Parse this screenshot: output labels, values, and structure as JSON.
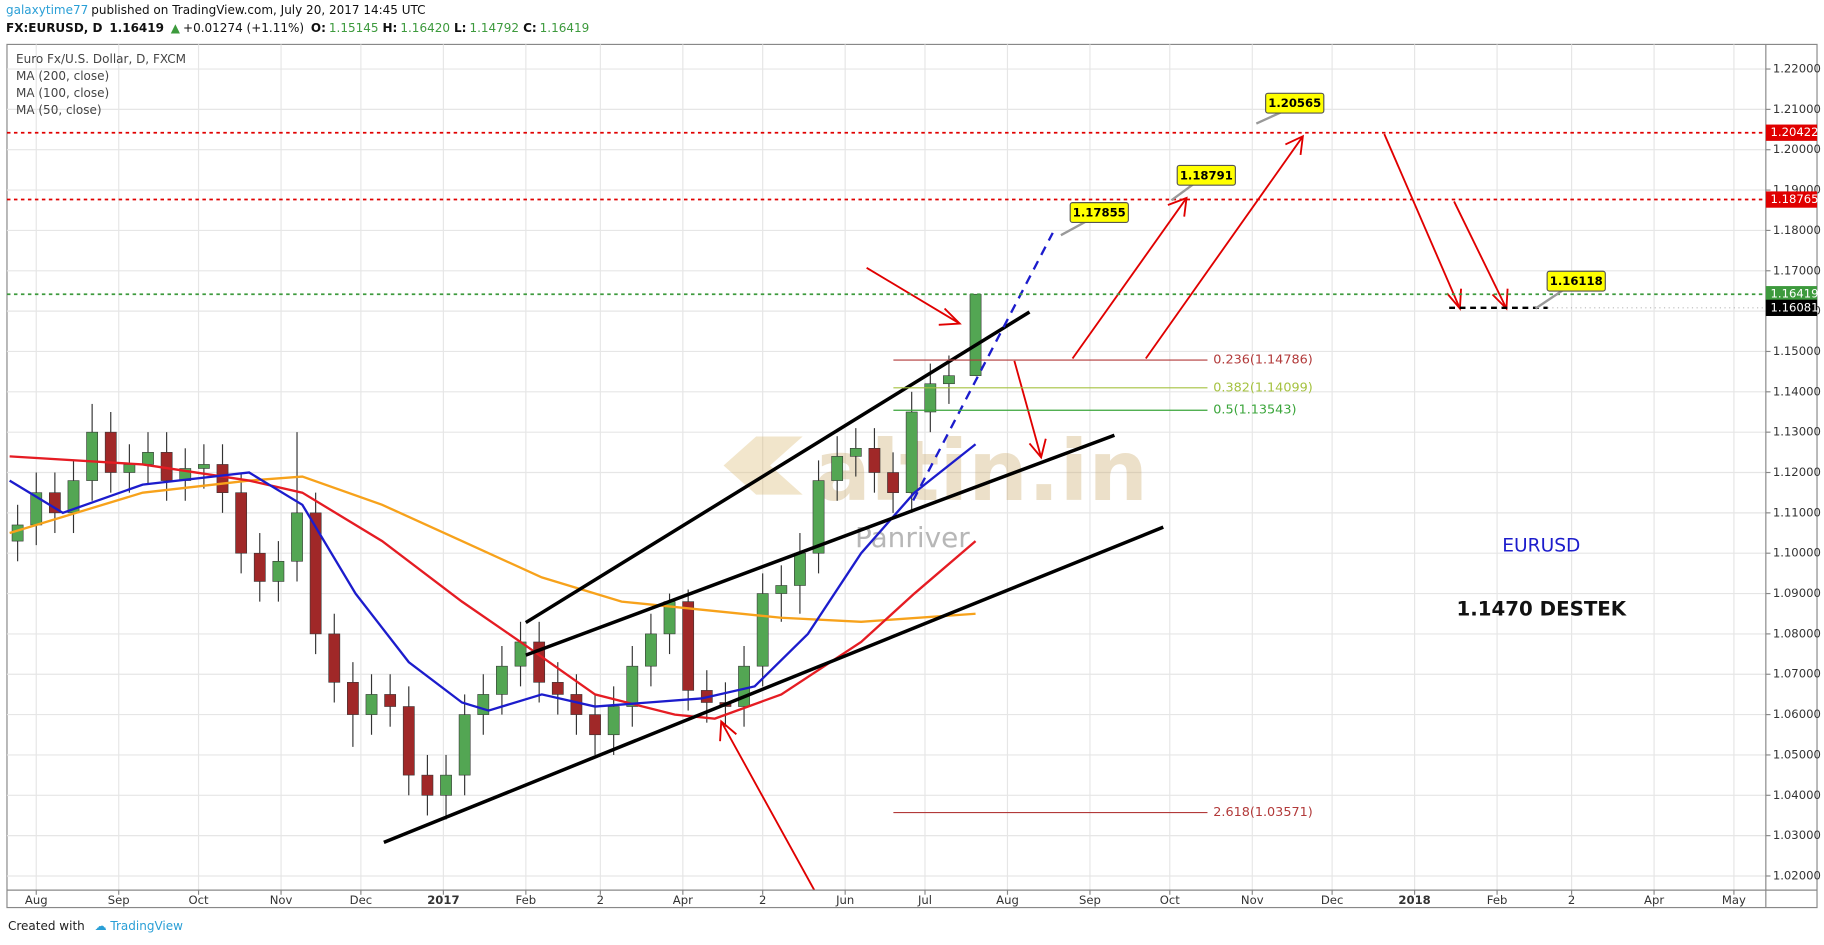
{
  "header": {
    "user": "galaxytime77",
    "published": "published on TradingView.com, July 20, 2017 14:45 UTC",
    "symbol": "FX:EURUSD, D",
    "last": "1.16419",
    "change": "+0.01274 (+1.11%)",
    "ohlc": [
      {
        "label": "O:",
        "value": "1.15145"
      },
      {
        "label": "H:",
        "value": "1.16420"
      },
      {
        "label": "L:",
        "value": "1.14792"
      },
      {
        "label": "C:",
        "value": "1.16419"
      }
    ]
  },
  "legend": [
    "Euro Fx/U.S. Dollar, D, FXCM",
    "MA (200, close)",
    "MA (100, close)",
    "MA (50, close)"
  ],
  "footer": {
    "created": "Created with",
    "brand": "TradingView"
  },
  "watermark": {
    "logo": "altin.in",
    "sub": "Panriver"
  },
  "chart_data": {
    "type": "candlestick",
    "grid": true,
    "up_color": "#53a653",
    "down_color": "#a02828",
    "xlim": [
      -11,
      650
    ],
    "ylim": [
      1.0165,
      1.2261
    ],
    "xticks": [
      {
        "value": 0,
        "label": "Aug"
      },
      {
        "value": 31,
        "label": "Sep"
      },
      {
        "value": 61,
        "label": "Oct"
      },
      {
        "value": 92,
        "label": "Nov"
      },
      {
        "value": 122,
        "label": "Dec"
      },
      {
        "value": 153,
        "label": "2017"
      },
      {
        "value": 184,
        "label": "Feb"
      },
      {
        "value": 212,
        "label": "2"
      },
      {
        "value": 243,
        "label": "Apr"
      },
      {
        "value": 273,
        "label": "2"
      },
      {
        "value": 304,
        "label": "Jun"
      },
      {
        "value": 334,
        "label": "Jul"
      },
      {
        "value": 365,
        "label": "Aug"
      },
      {
        "value": 396,
        "label": "Sep"
      },
      {
        "value": 426,
        "label": "Oct"
      },
      {
        "value": 457,
        "label": "Nov"
      },
      {
        "value": 487,
        "label": "Dec"
      },
      {
        "value": 518,
        "label": "2018"
      },
      {
        "value": 549,
        "label": "Feb"
      },
      {
        "value": 577,
        "label": "2"
      },
      {
        "value": 608,
        "label": "Apr"
      },
      {
        "value": 638,
        "label": "May"
      }
    ],
    "yticks": [
      {
        "value": 1.02,
        "label": "1.02000"
      },
      {
        "value": 1.03,
        "label": "1.03000"
      },
      {
        "value": 1.04,
        "label": "1.04000"
      },
      {
        "value": 1.05,
        "label": "1.05000"
      },
      {
        "value": 1.06,
        "label": "1.06000"
      },
      {
        "value": 1.07,
        "label": "1.07000"
      },
      {
        "value": 1.08,
        "label": "1.08000"
      },
      {
        "value": 1.09,
        "label": "1.09000"
      },
      {
        "value": 1.1,
        "label": "1.10000"
      },
      {
        "value": 1.11,
        "label": "1.11000"
      },
      {
        "value": 1.12,
        "label": "1.12000"
      },
      {
        "value": 1.13,
        "label": "1.13000"
      },
      {
        "value": 1.14,
        "label": "1.14000"
      },
      {
        "value": 1.15,
        "label": "1.15000"
      },
      {
        "value": 1.16,
        "label": "1.16000"
      },
      {
        "value": 1.17,
        "label": "1.17000"
      },
      {
        "value": 1.18,
        "label": "1.18000"
      },
      {
        "value": 1.19,
        "label": "1.19000"
      },
      {
        "value": 1.2,
        "label": "1.20000"
      },
      {
        "value": 1.21,
        "label": "1.21000"
      },
      {
        "value": 1.22,
        "label": "1.22000"
      }
    ],
    "x": [
      -7,
      0,
      7,
      14,
      21,
      28,
      35,
      42,
      49,
      56,
      63,
      70,
      77,
      84,
      91,
      98,
      105,
      112,
      119,
      126,
      133,
      140,
      147,
      154,
      161,
      168,
      175,
      182,
      189,
      196,
      203,
      210,
      217,
      224,
      231,
      238,
      245,
      252,
      259,
      266,
      273,
      280,
      287,
      294,
      301,
      308,
      315,
      322,
      329,
      336,
      343,
      353
    ],
    "open": [
      1.103,
      1.107,
      1.115,
      1.11,
      1.118,
      1.13,
      1.12,
      1.122,
      1.125,
      1.118,
      1.121,
      1.122,
      1.115,
      1.1,
      1.093,
      1.098,
      1.11,
      1.08,
      1.068,
      1.06,
      1.065,
      1.062,
      1.045,
      1.04,
      1.045,
      1.06,
      1.065,
      1.072,
      1.078,
      1.068,
      1.065,
      1.06,
      1.055,
      1.062,
      1.072,
      1.08,
      1.088,
      1.066,
      1.063,
      1.062,
      1.072,
      1.09,
      1.092,
      1.1,
      1.118,
      1.124,
      1.126,
      1.12,
      1.115,
      1.135,
      1.142,
      1.144
    ],
    "high": [
      1.112,
      1.12,
      1.12,
      1.123,
      1.137,
      1.135,
      1.127,
      1.13,
      1.13,
      1.126,
      1.127,
      1.127,
      1.12,
      1.105,
      1.103,
      1.13,
      1.115,
      1.085,
      1.073,
      1.07,
      1.07,
      1.067,
      1.05,
      1.05,
      1.065,
      1.07,
      1.077,
      1.083,
      1.083,
      1.073,
      1.07,
      1.065,
      1.067,
      1.077,
      1.085,
      1.09,
      1.091,
      1.071,
      1.068,
      1.077,
      1.095,
      1.097,
      1.105,
      1.123,
      1.129,
      1.131,
      1.131,
      1.125,
      1.14,
      1.147,
      1.149,
      1.1642
    ],
    "low": [
      1.098,
      1.102,
      1.105,
      1.105,
      1.113,
      1.115,
      1.115,
      1.117,
      1.113,
      1.113,
      1.116,
      1.11,
      1.095,
      1.088,
      1.088,
      1.093,
      1.075,
      1.063,
      1.052,
      1.055,
      1.057,
      1.04,
      1.035,
      1.034,
      1.04,
      1.055,
      1.06,
      1.067,
      1.063,
      1.06,
      1.055,
      1.05,
      1.05,
      1.057,
      1.067,
      1.075,
      1.061,
      1.058,
      1.057,
      1.057,
      1.067,
      1.083,
      1.085,
      1.095,
      1.113,
      1.119,
      1.115,
      1.11,
      1.11,
      1.13,
      1.137,
      1.1439
    ],
    "close": [
      1.107,
      1.115,
      1.11,
      1.118,
      1.13,
      1.12,
      1.122,
      1.125,
      1.118,
      1.121,
      1.122,
      1.115,
      1.1,
      1.093,
      1.098,
      1.11,
      1.08,
      1.068,
      1.06,
      1.065,
      1.062,
      1.045,
      1.04,
      1.045,
      1.06,
      1.065,
      1.072,
      1.078,
      1.068,
      1.065,
      1.06,
      1.055,
      1.062,
      1.072,
      1.08,
      1.088,
      1.066,
      1.063,
      1.062,
      1.072,
      1.09,
      1.092,
      1.1,
      1.118,
      1.124,
      1.126,
      1.12,
      1.115,
      1.135,
      1.142,
      1.144,
      1.16419
    ],
    "series": [
      {
        "name": "MA (200, close)",
        "color": "#f7a21b",
        "x": [
          -10,
          40,
          80,
          100,
          130,
          160,
          190,
          220,
          250,
          280,
          310,
          353
        ],
        "values": [
          1.105,
          1.115,
          1.118,
          1.119,
          1.112,
          1.103,
          1.094,
          1.088,
          1.086,
          1.084,
          1.083,
          1.085
        ]
      },
      {
        "name": "MA (100, close)",
        "color": "#e51c23",
        "x": [
          -10,
          40,
          80,
          100,
          130,
          160,
          182,
          210,
          240,
          255,
          280,
          310,
          330,
          353
        ],
        "values": [
          1.124,
          1.122,
          1.118,
          1.115,
          1.103,
          1.088,
          1.078,
          1.065,
          1.06,
          1.059,
          1.065,
          1.078,
          1.09,
          1.103
        ]
      },
      {
        "name": "MA (50, close)",
        "color": "#1c1ccc",
        "x": [
          -10,
          10,
          40,
          80,
          100,
          120,
          140,
          160,
          170,
          190,
          210,
          230,
          250,
          270,
          290,
          310,
          330,
          353
        ],
        "values": [
          1.118,
          1.11,
          1.117,
          1.12,
          1.112,
          1.09,
          1.073,
          1.063,
          1.061,
          1.065,
          1.062,
          1.063,
          1.064,
          1.067,
          1.08,
          1.1,
          1.115,
          1.127
        ]
      }
    ],
    "levels": [
      {
        "value": 1.20422,
        "color": "#e00000"
      },
      {
        "value": 1.18765,
        "color": "#e00000"
      },
      {
        "value": 1.16419,
        "color": "#3d9a3d"
      },
      {
        "value": 1.16081,
        "color": "#000000",
        "x": [
          531,
          568
        ]
      }
    ],
    "fib_levels": [
      {
        "value": 1.14786,
        "label": "0.236(1.14786)",
        "color": "#b23a3a"
      },
      {
        "value": 1.14099,
        "label": "0.382(1.14099)",
        "color": "#a5c240"
      },
      {
        "value": 1.13543,
        "label": "0.5(1.13543)",
        "color": "#3aa53a"
      },
      {
        "value": 1.03571,
        "label": "2.618(1.03571)",
        "color": "#b23a3a"
      }
    ],
    "callouts": [
      1.20565,
      1.18791,
      1.17855,
      1.16118
    ],
    "annotations": [
      "EURUSD",
      "1.1470 DESTEK"
    ]
  }
}
